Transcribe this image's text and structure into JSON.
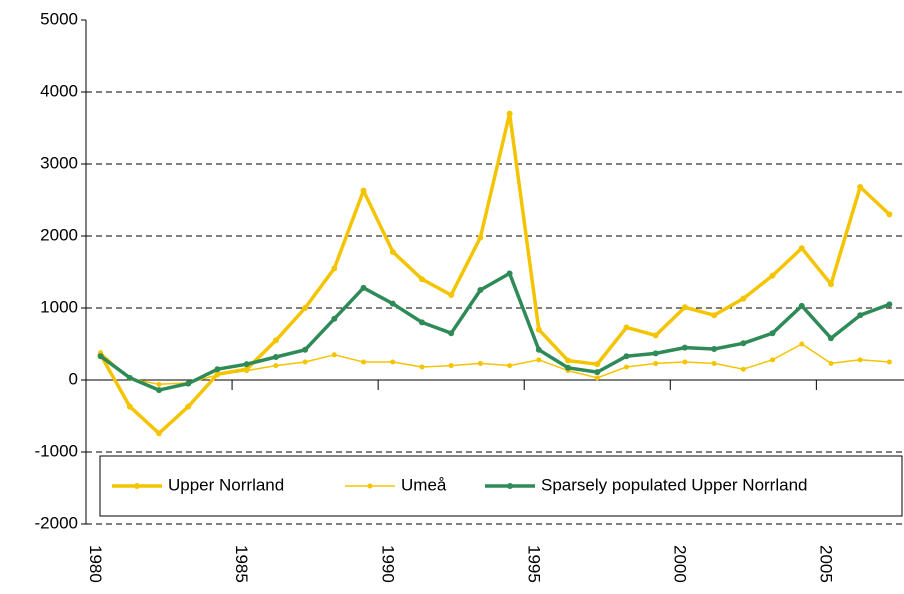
{
  "chart_data": {
    "type": "line",
    "categories": [
      "1980",
      null,
      null,
      null,
      null,
      "1985",
      null,
      null,
      null,
      null,
      "1990",
      null,
      null,
      null,
      null,
      "1995",
      null,
      null,
      null,
      null,
      "2000",
      null,
      null,
      null,
      null,
      "2005",
      null,
      null
    ],
    "series": [
      {
        "name": "Upper Norrland",
        "color": "#f5c400",
        "values": [
          350,
          -370,
          -740,
          -370,
          80,
          150,
          550,
          1000,
          1550,
          2630,
          1780,
          1400,
          1180,
          1980,
          3700,
          700,
          270,
          220,
          730,
          620,
          1010,
          900,
          1130,
          1450,
          1830,
          1330,
          2680,
          2300
        ]
      },
      {
        "name": "Umeå",
        "color": "#f5c400",
        "values": [
          380,
          20,
          -60,
          -40,
          70,
          130,
          200,
          250,
          350,
          250,
          250,
          180,
          200,
          230,
          200,
          280,
          130,
          30,
          180,
          230,
          250,
          230,
          150,
          280,
          500,
          230,
          280,
          250
        ]
      },
      {
        "name": "Sparsely populated Upper Norrland",
        "color": "#2e8b57",
        "values": [
          330,
          30,
          -140,
          -50,
          150,
          220,
          320,
          420,
          850,
          1280,
          1060,
          800,
          650,
          1250,
          1480,
          420,
          170,
          110,
          330,
          370,
          450,
          430,
          510,
          650,
          1030,
          580,
          900,
          1050
        ]
      }
    ],
    "ylim": [
      -2000,
      5000
    ],
    "yticks": [
      -2000,
      -1000,
      0,
      1000,
      2000,
      3000,
      4000,
      5000
    ],
    "grid": true,
    "legend": "bottom"
  }
}
